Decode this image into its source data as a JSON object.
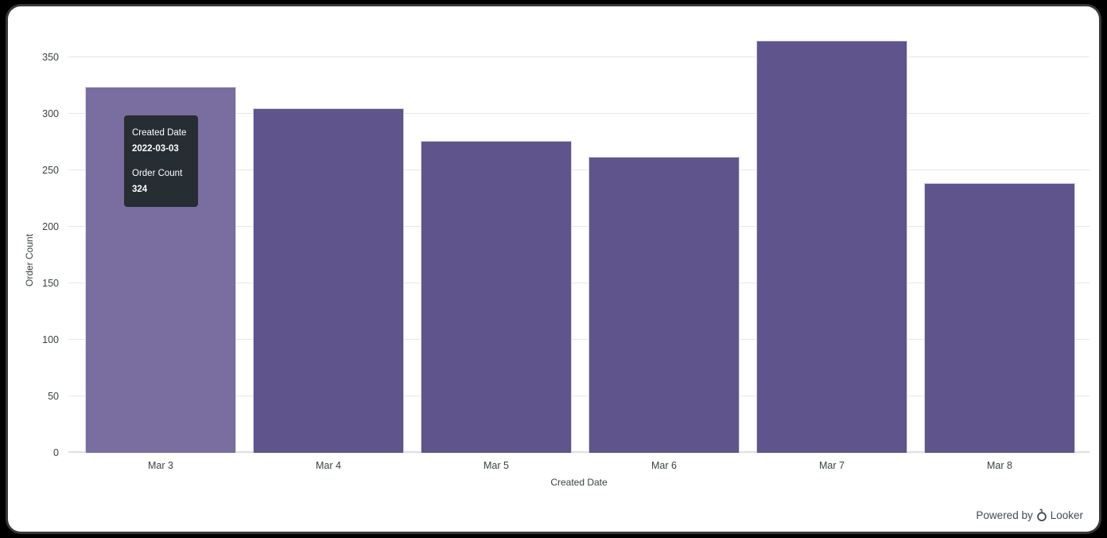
{
  "branding": {
    "powered_by": "Powered by",
    "brand": "Looker"
  },
  "tooltip": {
    "field1_label": "Created Date",
    "field1_value": "2022-03-03",
    "field2_label": "Order Count",
    "field2_value": "324"
  },
  "chart_data": {
    "type": "bar",
    "title": "",
    "xlabel": "Created Date",
    "ylabel": "Order Count",
    "categories": [
      "Mar 3",
      "Mar 4",
      "Mar 5",
      "Mar 6",
      "Mar 7",
      "Mar 8"
    ],
    "values": [
      324,
      305,
      276,
      262,
      365,
      239
    ],
    "yticks": [
      0,
      50,
      100,
      150,
      200,
      250,
      300,
      350
    ],
    "ylim": [
      0,
      367
    ],
    "grid": true,
    "legend": "none",
    "highlighted_index": 0,
    "colors": {
      "bar": "#5F548C",
      "bar_highlighted": "#7A6DA0",
      "gridline": "#e7e7e7",
      "axis_line": "#d9deec",
      "axis_text": "#3a4245",
      "tooltip_bg": "#262d33",
      "tooltip_text": "#ffffff"
    }
  }
}
